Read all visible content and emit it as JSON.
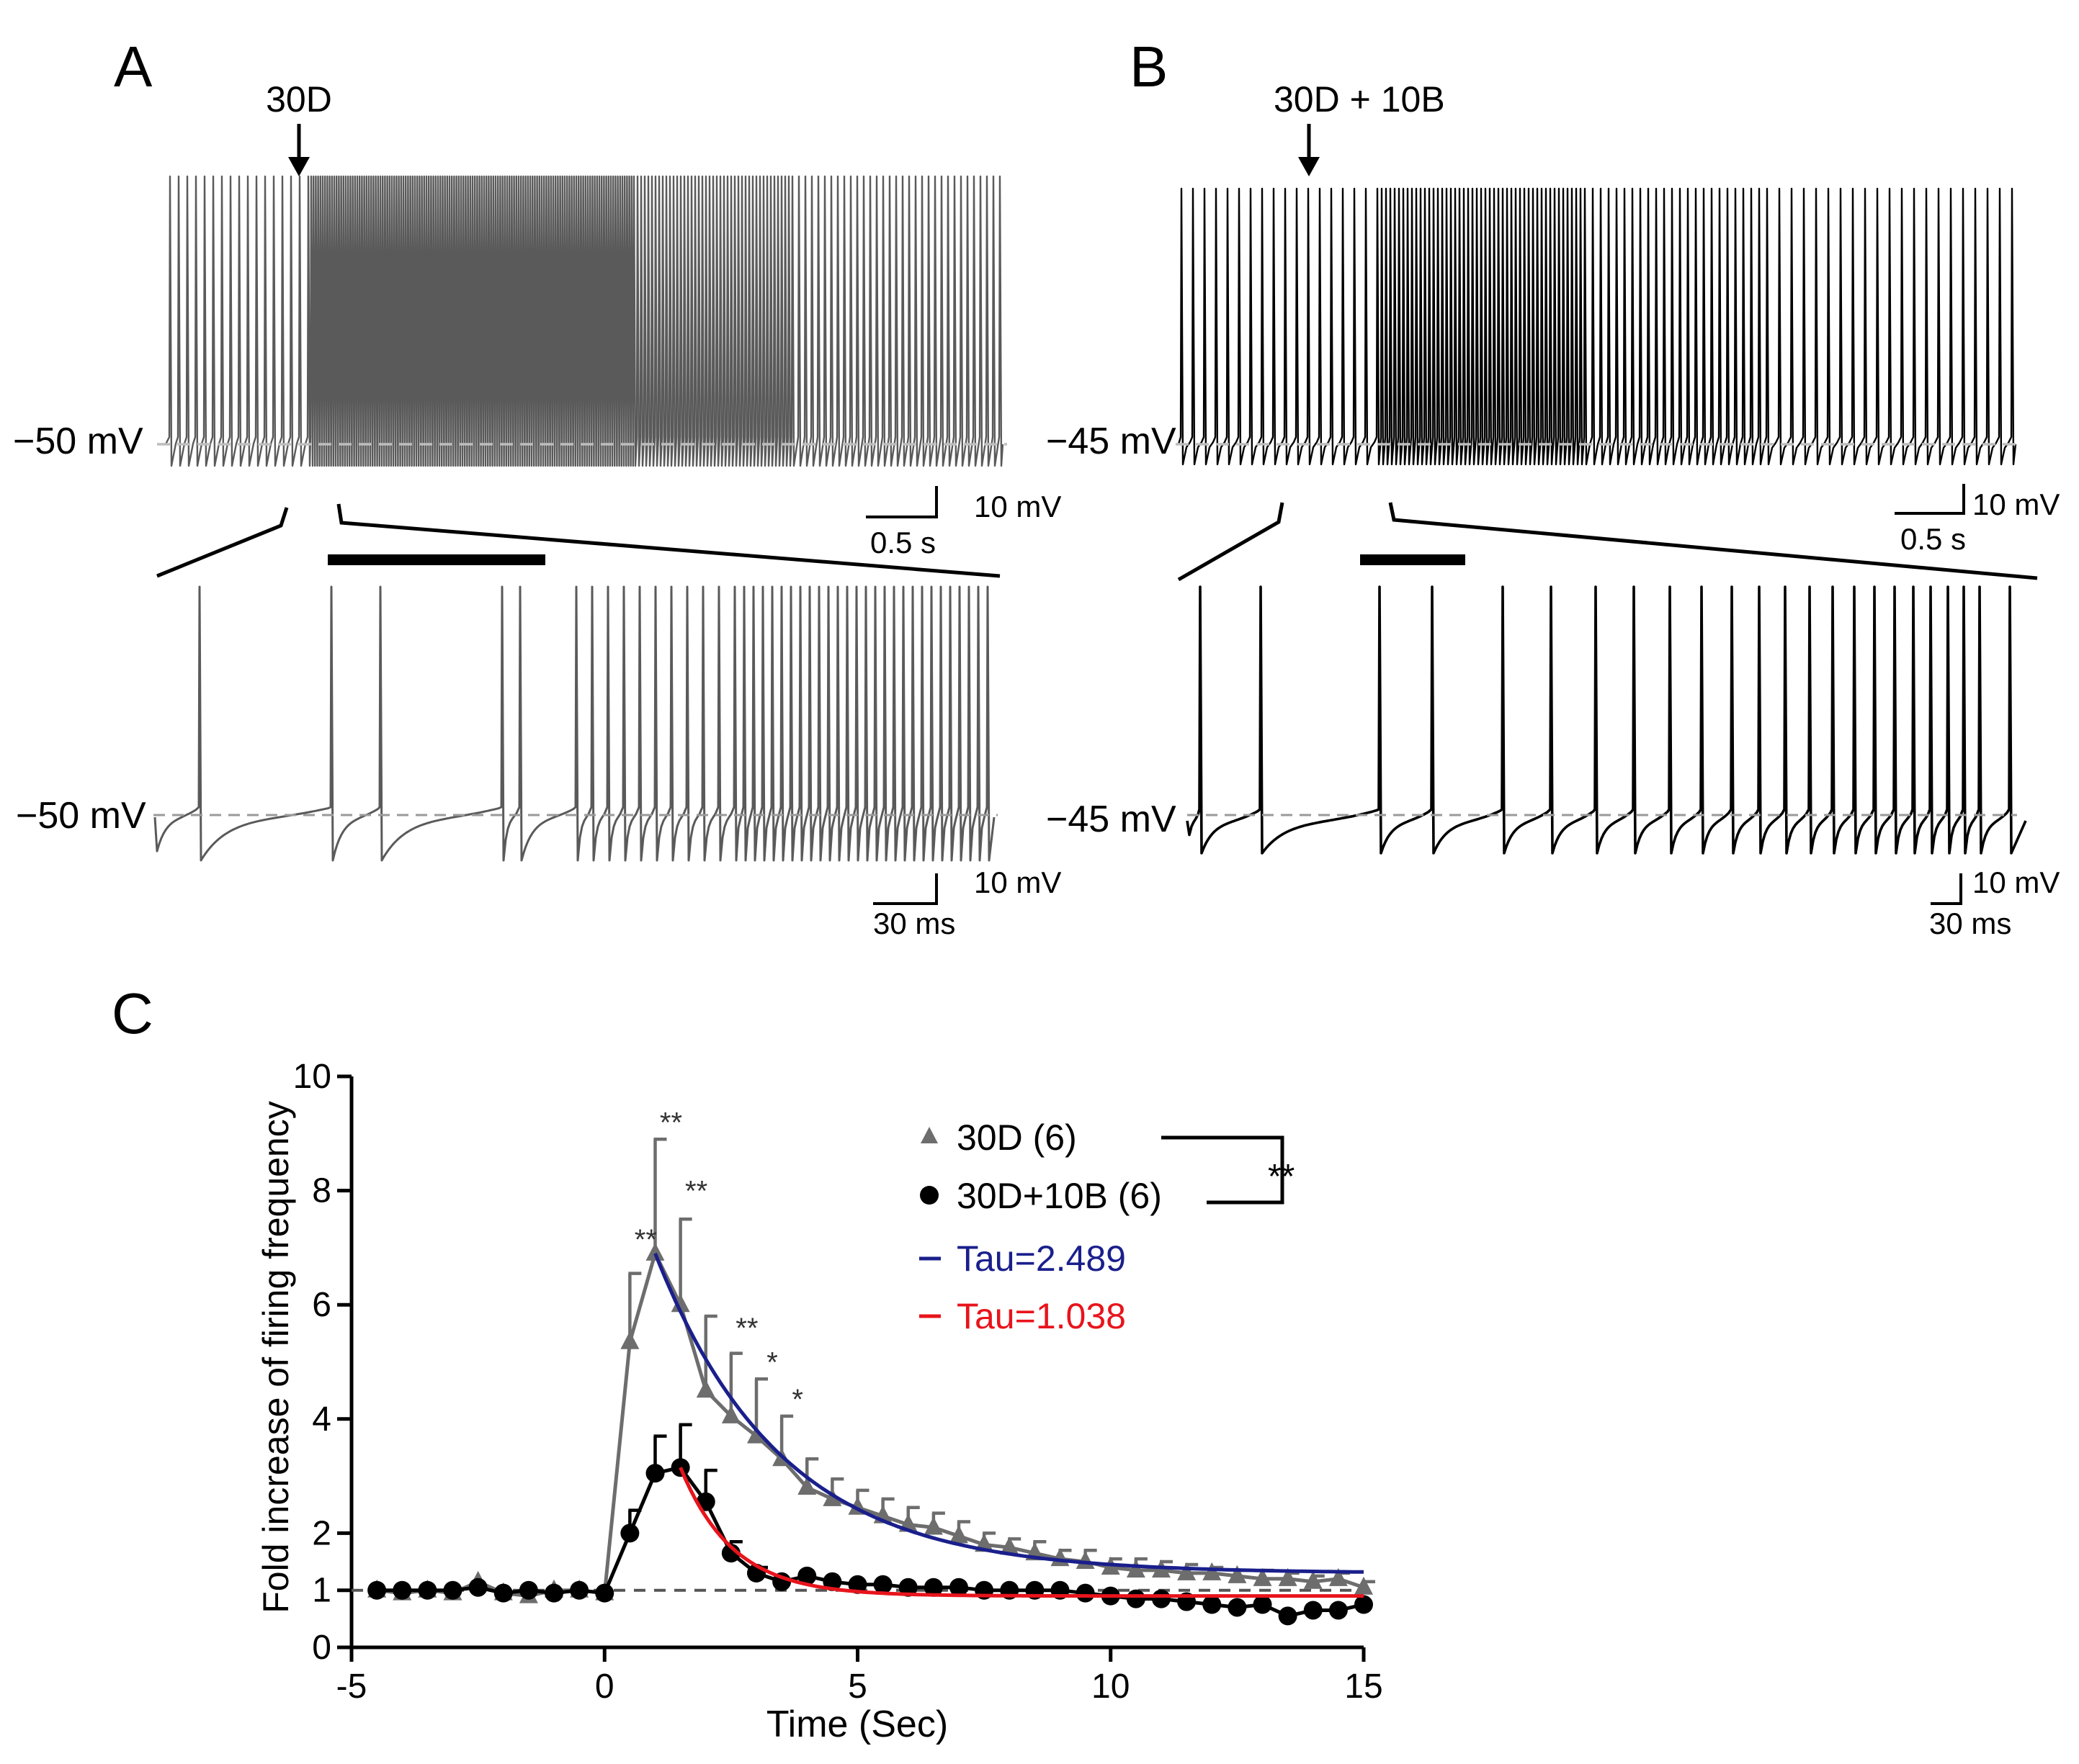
{
  "panel_a": {
    "letter": "A",
    "drug_label": "30D",
    "potential_label": "−50 mV",
    "zoom_potential_label": "−50 mV",
    "scale_time": "0.5 s",
    "scale_voltage": "10 mV",
    "zoom_scale_time": "30 ms",
    "zoom_scale_voltage": "10 mV",
    "trace_color": "#5a5a5a"
  },
  "panel_b": {
    "letter": "B",
    "drug_label": "30D + 10B",
    "potential_label": "−45 mV",
    "zoom_potential_label": "−45 mV",
    "scale_time": "0.5 s",
    "scale_voltage": "10 mV",
    "zoom_scale_time": "30 ms",
    "zoom_scale_voltage": "10 mV",
    "trace_color": "#000000"
  },
  "panel_c": {
    "letter": "C",
    "significance": "**"
  },
  "chart_data": {
    "type": "line",
    "xlabel": "Time (Sec)",
    "ylabel": "Fold increase of firing frequency",
    "xlim": [
      -5,
      15
    ],
    "ylim": [
      0,
      10
    ],
    "xticks": [
      -5,
      0,
      5,
      10,
      15
    ],
    "yticks": [
      0,
      1,
      2,
      4,
      6,
      8,
      10
    ],
    "baseline": 1,
    "x": [
      -4.5,
      -4,
      -3.5,
      -3,
      -2.5,
      -2,
      -1.5,
      -1,
      -0.5,
      0,
      0.5,
      1,
      1.5,
      2,
      2.5,
      3,
      3.5,
      4,
      4.5,
      5,
      5.5,
      6,
      6.5,
      7,
      7.5,
      8,
      8.5,
      9,
      9.5,
      10,
      10.5,
      11,
      11.5,
      12,
      12.5,
      13,
      13.5,
      14,
      14.5,
      15
    ],
    "series": [
      {
        "name": "30D (6)",
        "color": "#6d6d6d",
        "marker": "triangle",
        "values": [
          1.0,
          0.95,
          1.0,
          0.95,
          1.15,
          0.95,
          0.9,
          1.0,
          1.0,
          0.95,
          5.35,
          6.9,
          6.0,
          4.5,
          4.05,
          3.7,
          3.3,
          2.8,
          2.6,
          2.45,
          2.3,
          2.15,
          2.1,
          1.95,
          1.8,
          1.75,
          1.65,
          1.55,
          1.5,
          1.4,
          1.35,
          1.35,
          1.3,
          1.3,
          1.25,
          1.2,
          1.2,
          1.15,
          1.2,
          1.05
        ],
        "errors": [
          0,
          0,
          0,
          0,
          0,
          0,
          0,
          0,
          0,
          0,
          1.2,
          2.0,
          1.5,
          1.3,
          1.1,
          1.0,
          0.75,
          0.5,
          0.35,
          0.3,
          0.3,
          0.3,
          0.25,
          0.25,
          0.2,
          0.15,
          0.2,
          0.15,
          0.2,
          0.15,
          0.2,
          0.15,
          0.15,
          0.1,
          0.1,
          0.15,
          0.1,
          0.1,
          0.1,
          0.1
        ]
      },
      {
        "name": "30D+10B (6)",
        "color": "#000000",
        "marker": "circle",
        "values": [
          1.0,
          1.0,
          1.0,
          1.0,
          1.05,
          0.95,
          1.0,
          0.95,
          1.0,
          0.95,
          2.0,
          3.05,
          3.15,
          2.55,
          1.65,
          1.3,
          1.15,
          1.25,
          1.15,
          1.1,
          1.1,
          1.05,
          1.05,
          1.05,
          1.0,
          1.0,
          1.0,
          1.0,
          0.95,
          0.9,
          0.85,
          0.85,
          0.8,
          0.75,
          0.7,
          0.75,
          0.55,
          0.65,
          0.65,
          0.75
        ],
        "errors": [
          0,
          0,
          0,
          0,
          0,
          0,
          0,
          0,
          0,
          0,
          0.4,
          0.65,
          0.75,
          0.55,
          0.2,
          0.1,
          0,
          0,
          0,
          0,
          0,
          0,
          0,
          0,
          0,
          0,
          0,
          0,
          0,
          0,
          0,
          0,
          0,
          0,
          0,
          0,
          0,
          0,
          0,
          0
        ]
      }
    ],
    "fits": [
      {
        "label": "Tau=2.489",
        "color": "#1a1f8c",
        "tau": 2.489,
        "start": 1.0,
        "end": 15,
        "y0": 6.9,
        "plateau": 1.3
      },
      {
        "label": "Tau=1.038",
        "color": "#e8141c",
        "tau": 1.038,
        "start": 1.5,
        "end": 15,
        "y0": 3.15,
        "plateau": 0.9
      }
    ],
    "annotations": [
      {
        "x": 0.5,
        "y": 7.1,
        "text": "**"
      },
      {
        "x": 1.0,
        "y": 9.15,
        "text": "**"
      },
      {
        "x": 1.5,
        "y": 7.95,
        "text": "**"
      },
      {
        "x": 2.5,
        "y": 5.55,
        "text": "**"
      },
      {
        "x": 3.0,
        "y": 4.95,
        "text": "*"
      },
      {
        "x": 3.5,
        "y": 4.3,
        "text": "*"
      }
    ]
  }
}
